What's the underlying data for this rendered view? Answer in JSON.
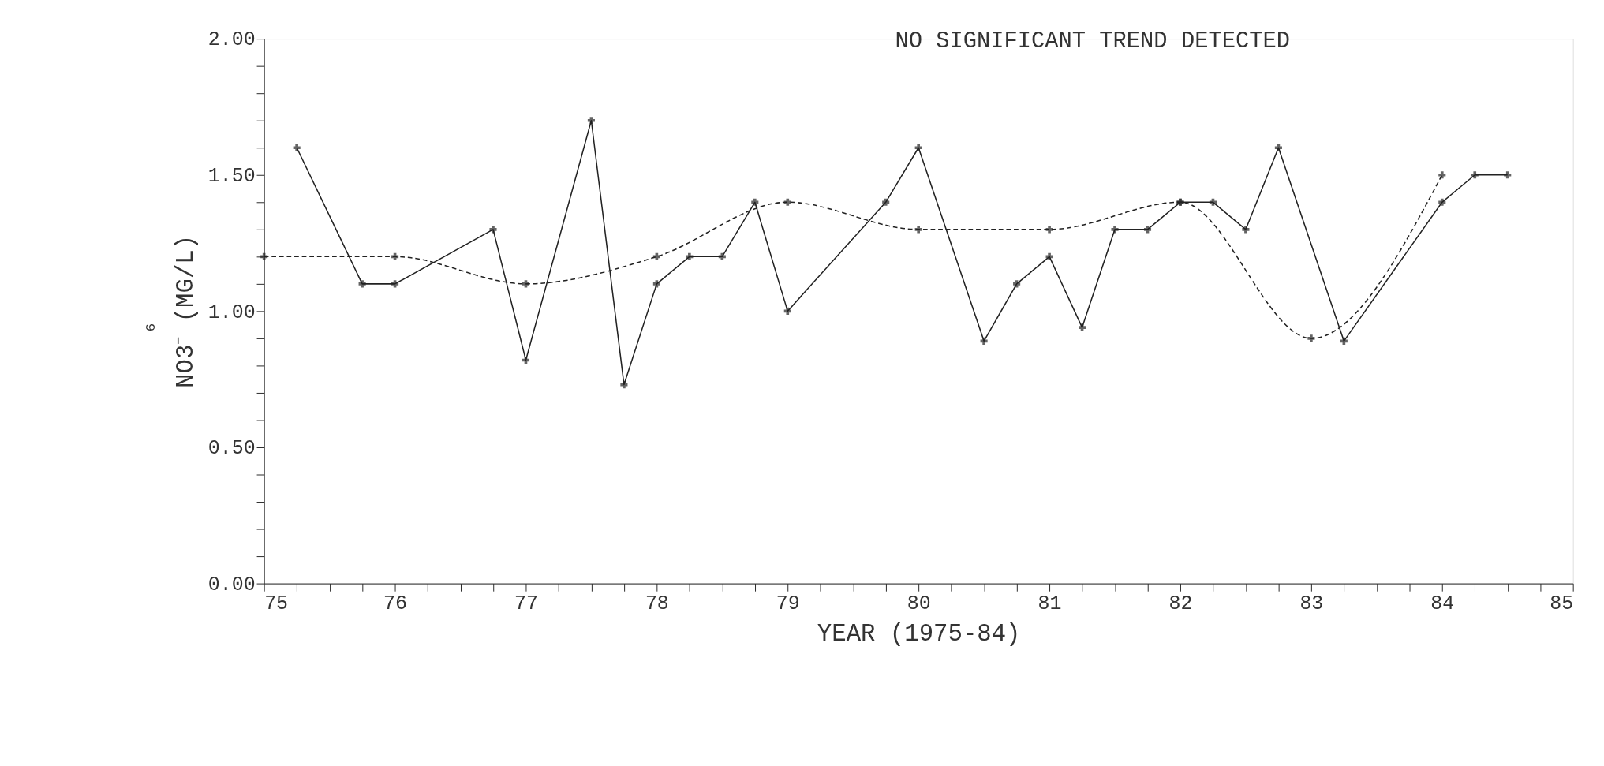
{
  "chart_data": {
    "type": "line",
    "title": "NO SIGNIFICANT TREND DETECTED",
    "xlabel": "YEAR (1975-84)",
    "ylabel": "NO3⁻ (MG/L)",
    "annotations": [
      "6"
    ],
    "xlim": [
      75,
      85
    ],
    "ylim": [
      0,
      2
    ],
    "xticks": [
      75,
      {
        "value": 75.25,
        "label": null
      },
      {
        "value": 75.5,
        "label": null
      },
      {
        "value": 75.75,
        "label": null
      },
      76,
      {
        "value": 76.25,
        "label": null
      },
      {
        "value": 76.5,
        "label": null
      },
      {
        "value": 76.75,
        "label": null
      },
      77,
      {
        "value": 77.25,
        "label": null
      },
      {
        "value": 77.5,
        "label": null
      },
      {
        "value": 77.75,
        "label": null
      },
      78,
      {
        "value": 78.25,
        "label": null
      },
      {
        "value": 78.5,
        "label": null
      },
      {
        "value": 78.75,
        "label": null
      },
      79,
      {
        "value": 79.25,
        "label": null
      },
      {
        "value": 79.5,
        "label": null
      },
      {
        "value": 79.75,
        "label": null
      },
      80,
      {
        "value": 80.25,
        "label": null
      },
      {
        "value": 80.5,
        "label": null
      },
      {
        "value": 80.75,
        "label": null
      },
      81,
      {
        "value": 81.25,
        "label": null
      },
      {
        "value": 81.5,
        "label": null
      },
      {
        "value": 81.75,
        "label": null
      },
      82,
      {
        "value": 82.25,
        "label": null
      },
      {
        "value": 82.5,
        "label": null
      },
      {
        "value": 82.75,
        "label": null
      },
      83,
      {
        "value": 83.25,
        "label": null
      },
      {
        "value": 83.5,
        "label": null
      },
      {
        "value": 83.75,
        "label": null
      },
      84,
      {
        "value": 84.25,
        "label": null
      },
      {
        "value": 84.5,
        "label": null
      },
      {
        "value": 84.75,
        "label": null
      },
      85
    ],
    "yticks": [
      {
        "value": 0,
        "label": "0.00"
      },
      {
        "value": 0.1,
        "label": null
      },
      {
        "value": 0.2,
        "label": null
      },
      {
        "value": 0.3,
        "label": null
      },
      {
        "value": 0.4,
        "label": null
      },
      {
        "value": 0.5,
        "label": "0.50"
      },
      {
        "value": 0.6,
        "label": null
      },
      {
        "value": 0.7,
        "label": null
      },
      {
        "value": 0.8,
        "label": null
      },
      {
        "value": 0.9,
        "label": null
      },
      {
        "value": 1,
        "label": "1.00"
      },
      {
        "value": 1.1,
        "label": null
      },
      {
        "value": 1.2,
        "label": null
      },
      {
        "value": 1.3,
        "label": null
      },
      {
        "value": 1.4,
        "label": null
      },
      {
        "value": 1.5,
        "label": "1.50"
      },
      {
        "value": 1.6,
        "label": null
      },
      {
        "value": 1.7,
        "label": null
      },
      {
        "value": 1.8,
        "label": null
      },
      {
        "value": 1.9,
        "label": null
      },
      {
        "value": 2,
        "label": "2.00"
      }
    ],
    "grid": false,
    "marker": "cross",
    "series": [
      {
        "color": "#222222",
        "line_style": "solid",
        "x": [
          75.25,
          75.75,
          76,
          76.75,
          77,
          77.5,
          77.75,
          78,
          78.25,
          78.5,
          78.75,
          79,
          79.75,
          80,
          80.5,
          80.75,
          81,
          81.25,
          81.5,
          81.75,
          82,
          82.25,
          82.5,
          82.75,
          83.25,
          84,
          84.25,
          84.5
        ],
        "values": [
          1.6,
          1.1,
          1.1,
          1.3,
          0.82,
          1.7,
          0.73,
          1.1,
          1.2,
          1.2,
          1.4,
          1.0,
          1.4,
          1.6,
          0.89,
          1.1,
          1.2,
          0.94,
          1.3,
          1.3,
          1.4,
          1.4,
          1.3,
          1.6,
          0.89,
          1.4,
          1.5,
          1.5
        ]
      },
      {
        "color": "#222222",
        "line_style": "dashed",
        "x": [
          75,
          76,
          77,
          78,
          79,
          80,
          81,
          82,
          83,
          84
        ],
        "values": [
          1.2,
          1.2,
          1.1,
          1.2,
          1.4,
          1.3,
          1.3,
          1.4,
          0.9,
          1.5
        ]
      }
    ]
  }
}
